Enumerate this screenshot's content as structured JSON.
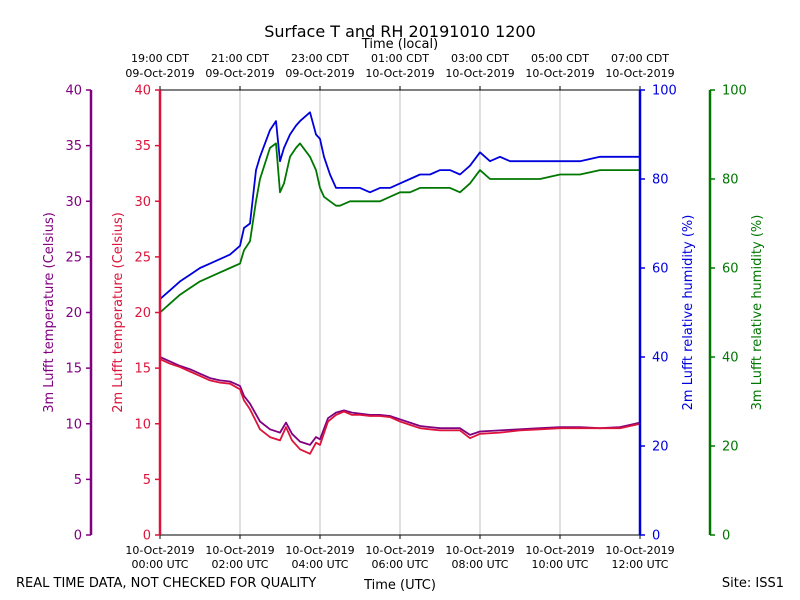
{
  "chart_data": {
    "type": "line",
    "title": "Surface T and RH 20191010 1200",
    "top_axis_title": "Time (local)",
    "bottom_axis_title": "Time (UTC)",
    "footer_left": "REAL TIME DATA, NOT CHECKED FOR QUALITY",
    "footer_right": "Site: ISS1",
    "x_range_hours": [
      0,
      12
    ],
    "grid_hours": [
      2,
      4,
      6,
      8,
      10
    ],
    "x_ticks_utc": [
      {
        "hour": 0,
        "line1": "10-Oct-2019",
        "line2": "00:00 UTC"
      },
      {
        "hour": 2,
        "line1": "10-Oct-2019",
        "line2": "02:00 UTC"
      },
      {
        "hour": 4,
        "line1": "10-Oct-2019",
        "line2": "04:00 UTC"
      },
      {
        "hour": 6,
        "line1": "10-Oct-2019",
        "line2": "06:00 UTC"
      },
      {
        "hour": 8,
        "line1": "10-Oct-2019",
        "line2": "08:00 UTC"
      },
      {
        "hour": 10,
        "line1": "10-Oct-2019",
        "line2": "10:00 UTC"
      },
      {
        "hour": 12,
        "line1": "10-Oct-2019",
        "line2": "12:00 UTC"
      }
    ],
    "x_ticks_local": [
      {
        "hour": 0,
        "line1": "19:00 CDT",
        "line2": "09-Oct-2019"
      },
      {
        "hour": 2,
        "line1": "21:00 CDT",
        "line2": "09-Oct-2019"
      },
      {
        "hour": 4,
        "line1": "23:00 CDT",
        "line2": "09-Oct-2019"
      },
      {
        "hour": 6,
        "line1": "01:00 CDT",
        "line2": "10-Oct-2019"
      },
      {
        "hour": 8,
        "line1": "03:00 CDT",
        "line2": "10-Oct-2019"
      },
      {
        "hour": 10,
        "line1": "05:00 CDT",
        "line2": "10-Oct-2019"
      },
      {
        "hour": 12,
        "line1": "07:00 CDT",
        "line2": "10-Oct-2019"
      }
    ],
    "axes": [
      {
        "id": "t3",
        "label": "3m Lufft temperature (Celsius)",
        "color": "#800080",
        "range": [
          0,
          40
        ],
        "ticks": [
          "0",
          "5",
          "10",
          "15",
          "20",
          "25",
          "30",
          "35",
          "40"
        ]
      },
      {
        "id": "t2",
        "label": "2m Lufft temperature (Celsius)",
        "color": "#dc143c",
        "range": [
          0,
          40
        ],
        "ticks": [
          "0",
          "5",
          "10",
          "15",
          "20",
          "25",
          "30",
          "35",
          "40"
        ]
      },
      {
        "id": "rh2",
        "label": "2m Lufft relative humidity (%)",
        "color": "#0000dd",
        "range": [
          0,
          100
        ],
        "ticks": [
          "0",
          "20",
          "40",
          "60",
          "80",
          "100"
        ]
      },
      {
        "id": "rh3",
        "label": "3m Lufft relative humidity (%)",
        "color": "#007700",
        "range": [
          0,
          100
        ],
        "ticks": [
          "0",
          "20",
          "40",
          "60",
          "80",
          "100"
        ]
      }
    ],
    "series": [
      {
        "name": "3m Lufft temperature",
        "axis": "t3",
        "color": "#800080",
        "x": [
          0,
          0.25,
          0.5,
          0.75,
          1.0,
          1.25,
          1.5,
          1.75,
          2.0,
          2.1,
          2.25,
          2.5,
          2.75,
          3.0,
          3.15,
          3.3,
          3.5,
          3.75,
          3.9,
          4.0,
          4.2,
          4.4,
          4.6,
          4.8,
          5.0,
          5.25,
          5.5,
          5.75,
          6.0,
          6.25,
          6.5,
          6.75,
          7.0,
          7.25,
          7.5,
          7.75,
          8.0,
          8.5,
          9.0,
          9.5,
          10.0,
          10.5,
          11.0,
          11.5,
          12.0
        ],
        "y": [
          16.0,
          15.6,
          15.2,
          14.9,
          14.5,
          14.1,
          13.9,
          13.8,
          13.4,
          12.5,
          11.8,
          10.2,
          9.5,
          9.2,
          10.1,
          9.1,
          8.4,
          8.1,
          8.8,
          8.6,
          10.5,
          11.0,
          11.2,
          11.0,
          10.9,
          10.8,
          10.8,
          10.7,
          10.4,
          10.1,
          9.8,
          9.7,
          9.6,
          9.6,
          9.6,
          9.0,
          9.3,
          9.4,
          9.5,
          9.6,
          9.7,
          9.7,
          9.6,
          9.7,
          10.1
        ]
      },
      {
        "name": "2m Lufft temperature",
        "axis": "t2",
        "color": "#dc143c",
        "x": [
          0,
          0.25,
          0.5,
          0.75,
          1.0,
          1.25,
          1.5,
          1.75,
          2.0,
          2.1,
          2.25,
          2.5,
          2.75,
          3.0,
          3.15,
          3.3,
          3.5,
          3.75,
          3.9,
          4.0,
          4.2,
          4.4,
          4.6,
          4.8,
          5.0,
          5.25,
          5.5,
          5.75,
          6.0,
          6.25,
          6.5,
          6.75,
          7.0,
          7.25,
          7.5,
          7.75,
          8.0,
          8.5,
          9.0,
          9.5,
          10.0,
          10.5,
          11.0,
          11.5,
          12.0
        ],
        "y": [
          15.8,
          15.4,
          15.1,
          14.7,
          14.3,
          13.9,
          13.7,
          13.6,
          13.1,
          12.1,
          11.3,
          9.5,
          8.8,
          8.5,
          9.7,
          8.5,
          7.7,
          7.3,
          8.3,
          8.1,
          10.2,
          10.8,
          11.1,
          10.8,
          10.8,
          10.7,
          10.7,
          10.6,
          10.2,
          9.9,
          9.6,
          9.5,
          9.4,
          9.4,
          9.4,
          8.7,
          9.1,
          9.2,
          9.4,
          9.5,
          9.6,
          9.6,
          9.6,
          9.6,
          10.0
        ]
      },
      {
        "name": "2m Lufft relative humidity",
        "axis": "rh2",
        "color": "#0000dd",
        "x": [
          0,
          0.25,
          0.5,
          0.75,
          1.0,
          1.25,
          1.5,
          1.75,
          2.0,
          2.1,
          2.25,
          2.4,
          2.5,
          2.75,
          2.9,
          3.0,
          3.1,
          3.25,
          3.4,
          3.5,
          3.75,
          3.9,
          4.0,
          4.1,
          4.25,
          4.4,
          4.5,
          4.75,
          5.0,
          5.25,
          5.5,
          5.75,
          6.0,
          6.25,
          6.5,
          6.75,
          7.0,
          7.25,
          7.5,
          7.75,
          8.0,
          8.25,
          8.5,
          8.75,
          9.0,
          9.5,
          10.0,
          10.5,
          11.0,
          11.5,
          12.0
        ],
        "y": [
          53,
          55,
          57,
          58.5,
          60,
          61,
          62,
          63,
          65,
          69,
          70,
          82,
          85,
          91,
          93,
          84,
          87,
          90,
          92,
          93,
          95,
          90,
          89,
          85,
          81,
          78,
          78,
          78,
          78,
          77,
          78,
          78,
          79,
          80,
          81,
          81,
          82,
          82,
          81,
          83,
          86,
          84,
          85,
          84,
          84,
          84,
          84,
          84,
          85,
          85,
          85
        ]
      },
      {
        "name": "3m Lufft relative humidity",
        "axis": "rh3",
        "color": "#007700",
        "x": [
          0,
          0.25,
          0.5,
          0.75,
          1.0,
          1.25,
          1.5,
          1.75,
          2.0,
          2.1,
          2.25,
          2.4,
          2.5,
          2.75,
          2.9,
          3.0,
          3.1,
          3.25,
          3.4,
          3.5,
          3.75,
          3.9,
          4.0,
          4.1,
          4.25,
          4.4,
          4.5,
          4.75,
          5.0,
          5.25,
          5.5,
          5.75,
          6.0,
          6.25,
          6.5,
          6.75,
          7.0,
          7.25,
          7.5,
          7.75,
          8.0,
          8.25,
          8.5,
          8.75,
          9.0,
          9.5,
          10.0,
          10.5,
          11.0,
          11.5,
          12.0
        ],
        "y": [
          50,
          52,
          54,
          55.5,
          57,
          58,
          59,
          60,
          61,
          64,
          66,
          75,
          80,
          87,
          88,
          77,
          79,
          85,
          87,
          88,
          85,
          82,
          78,
          76,
          75,
          74,
          74,
          75,
          75,
          75,
          75,
          76,
          77,
          77,
          78,
          78,
          78,
          78,
          77,
          79,
          82,
          80,
          80,
          80,
          80,
          80,
          81,
          81,
          82,
          82,
          82
        ]
      }
    ]
  }
}
